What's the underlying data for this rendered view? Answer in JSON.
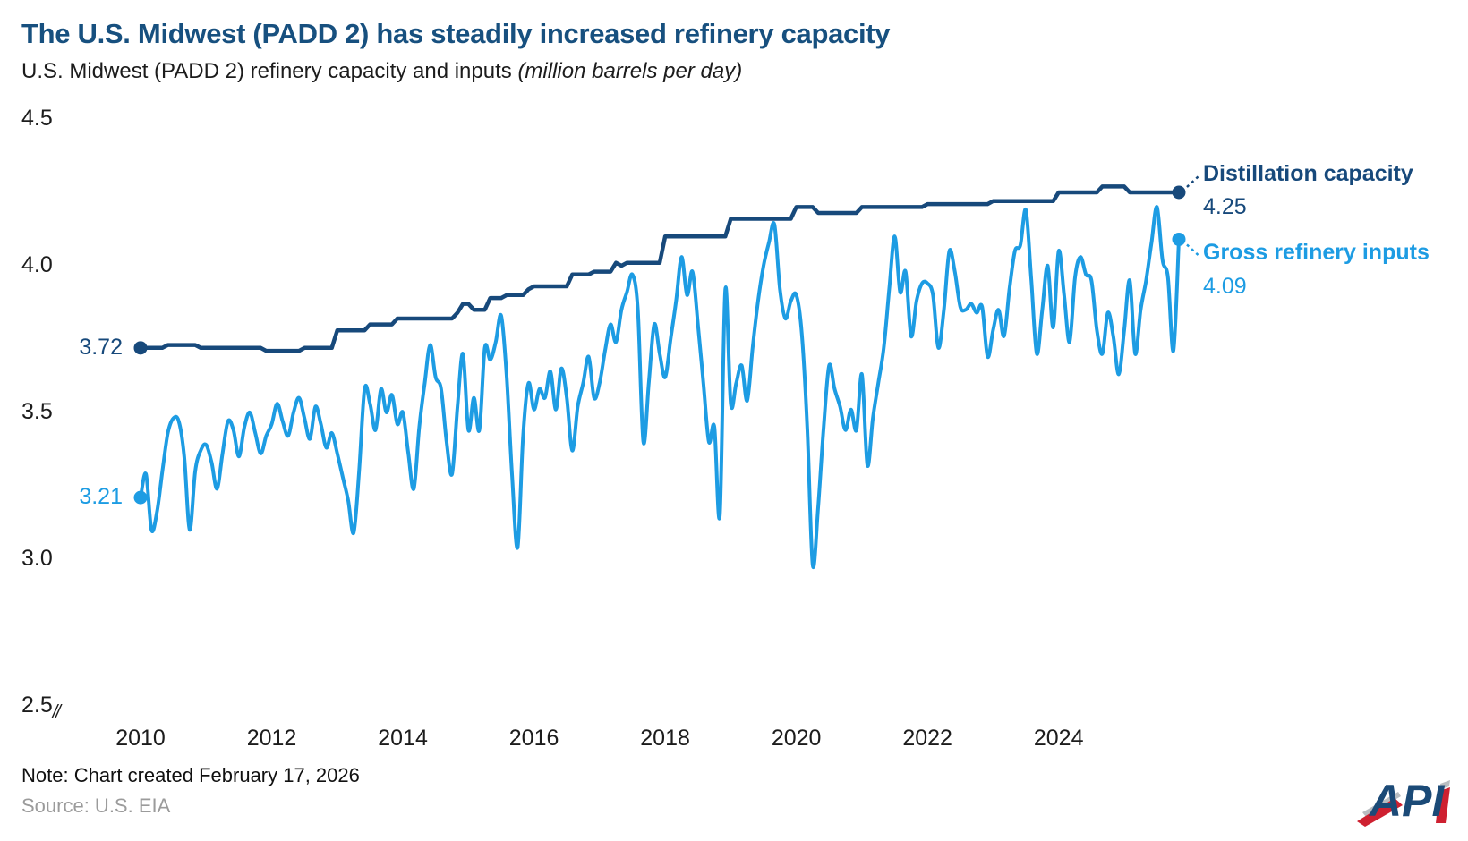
{
  "header": {
    "title": "The U.S. Midwest (PADD 2) has steadily increased refinery capacity",
    "subtitle": "U.S. Midwest (PADD 2) refinery capacity and inputs ",
    "subtitle_italic": "(million barrels per day)"
  },
  "footer": {
    "note": "Note: Chart created February 17, 2026",
    "source": "Source: U.S. EIA",
    "logo_text": "API"
  },
  "chart_data": {
    "type": "line",
    "title": "U.S. Midwest (PADD 2) refinery capacity and inputs",
    "units": "million barrels per day",
    "frequency": "monthly",
    "x_start": "2010-01",
    "x_end": "2025-11",
    "ylim": [
      2.5,
      4.5
    ],
    "grid": false,
    "axis_break_symbol": "//",
    "y_axis": {
      "ticks": [
        {
          "label": "4.5",
          "value": 4.5,
          "break": false
        },
        {
          "label": "4.0",
          "value": 4.0,
          "break": false
        },
        {
          "label": "3.5",
          "value": 3.5,
          "break": false
        },
        {
          "label": "3.0",
          "value": 3.0,
          "break": false
        },
        {
          "label": "2.5",
          "value": 2.5,
          "break": true
        }
      ]
    },
    "x_axis": {
      "ticks": [
        {
          "label": "2010",
          "year": 2010
        },
        {
          "label": "2012",
          "year": 2012
        },
        {
          "label": "2014",
          "year": 2014
        },
        {
          "label": "2016",
          "year": 2016
        },
        {
          "label": "2018",
          "year": 2018
        },
        {
          "label": "2020",
          "year": 2020
        },
        {
          "label": "2022",
          "year": 2022
        },
        {
          "label": "2024",
          "year": 2024
        }
      ]
    },
    "series": [
      {
        "name": "Distillation capacity",
        "color": "#17497b",
        "first_label": "3.72",
        "last_label": "4.25",
        "smooth": false,
        "values": [
          3.72,
          3.72,
          3.72,
          3.72,
          3.72,
          3.73,
          3.73,
          3.73,
          3.73,
          3.73,
          3.73,
          3.72,
          3.72,
          3.72,
          3.72,
          3.72,
          3.72,
          3.72,
          3.72,
          3.72,
          3.72,
          3.72,
          3.72,
          3.71,
          3.71,
          3.71,
          3.71,
          3.71,
          3.71,
          3.71,
          3.72,
          3.72,
          3.72,
          3.72,
          3.72,
          3.72,
          3.78,
          3.78,
          3.78,
          3.78,
          3.78,
          3.78,
          3.8,
          3.8,
          3.8,
          3.8,
          3.8,
          3.82,
          3.82,
          3.82,
          3.82,
          3.82,
          3.82,
          3.82,
          3.82,
          3.82,
          3.82,
          3.82,
          3.84,
          3.87,
          3.87,
          3.85,
          3.85,
          3.85,
          3.89,
          3.89,
          3.89,
          3.9,
          3.9,
          3.9,
          3.9,
          3.92,
          3.93,
          3.93,
          3.93,
          3.93,
          3.93,
          3.93,
          3.93,
          3.97,
          3.97,
          3.97,
          3.97,
          3.98,
          3.98,
          3.98,
          3.98,
          4.01,
          4.0,
          4.01,
          4.01,
          4.01,
          4.01,
          4.01,
          4.01,
          4.01,
          4.1,
          4.1,
          4.1,
          4.1,
          4.1,
          4.1,
          4.1,
          4.1,
          4.1,
          4.1,
          4.1,
          4.1,
          4.16,
          4.16,
          4.16,
          4.16,
          4.16,
          4.16,
          4.16,
          4.16,
          4.16,
          4.16,
          4.16,
          4.16,
          4.2,
          4.2,
          4.2,
          4.2,
          4.18,
          4.18,
          4.18,
          4.18,
          4.18,
          4.18,
          4.18,
          4.18,
          4.2,
          4.2,
          4.2,
          4.2,
          4.2,
          4.2,
          4.2,
          4.2,
          4.2,
          4.2,
          4.2,
          4.2,
          4.21,
          4.21,
          4.21,
          4.21,
          4.21,
          4.21,
          4.21,
          4.21,
          4.21,
          4.21,
          4.21,
          4.21,
          4.22,
          4.22,
          4.22,
          4.22,
          4.22,
          4.22,
          4.22,
          4.22,
          4.22,
          4.22,
          4.22,
          4.22,
          4.25,
          4.25,
          4.25,
          4.25,
          4.25,
          4.25,
          4.25,
          4.25,
          4.27,
          4.27,
          4.27,
          4.27,
          4.27,
          4.25,
          4.25,
          4.25,
          4.25,
          4.25,
          4.25,
          4.25,
          4.25,
          4.25,
          4.25
        ]
      },
      {
        "name": "Gross refinery inputs",
        "color": "#1d9ce3",
        "first_label": "3.21",
        "last_label": "4.09",
        "smooth": true,
        "values": [
          3.21,
          3.29,
          3.1,
          3.16,
          3.3,
          3.43,
          3.48,
          3.47,
          3.35,
          3.1,
          3.3,
          3.37,
          3.39,
          3.33,
          3.24,
          3.36,
          3.47,
          3.44,
          3.35,
          3.45,
          3.5,
          3.43,
          3.36,
          3.42,
          3.46,
          3.53,
          3.47,
          3.42,
          3.5,
          3.55,
          3.48,
          3.41,
          3.52,
          3.46,
          3.38,
          3.43,
          3.36,
          3.28,
          3.2,
          3.09,
          3.3,
          3.58,
          3.53,
          3.44,
          3.58,
          3.5,
          3.56,
          3.46,
          3.5,
          3.36,
          3.24,
          3.45,
          3.6,
          3.73,
          3.62,
          3.58,
          3.4,
          3.29,
          3.52,
          3.7,
          3.44,
          3.55,
          3.44,
          3.72,
          3.68,
          3.74,
          3.83,
          3.62,
          3.28,
          3.04,
          3.42,
          3.6,
          3.51,
          3.58,
          3.55,
          3.64,
          3.51,
          3.65,
          3.55,
          3.37,
          3.52,
          3.6,
          3.69,
          3.55,
          3.6,
          3.71,
          3.8,
          3.74,
          3.85,
          3.91,
          3.97,
          3.85,
          3.4,
          3.6,
          3.8,
          3.7,
          3.62,
          3.75,
          3.88,
          4.03,
          3.9,
          3.98,
          3.8,
          3.6,
          3.4,
          3.45,
          3.15,
          3.92,
          3.53,
          3.6,
          3.66,
          3.54,
          3.72,
          3.88,
          4.0,
          4.08,
          4.14,
          3.92,
          3.82,
          3.88,
          3.9,
          3.77,
          3.45,
          2.98,
          3.18,
          3.45,
          3.66,
          3.58,
          3.52,
          3.44,
          3.51,
          3.44,
          3.63,
          3.32,
          3.48,
          3.6,
          3.72,
          3.92,
          4.1,
          3.91,
          3.98,
          3.76,
          3.88,
          3.94,
          3.94,
          3.9,
          3.72,
          3.85,
          4.05,
          3.98,
          3.86,
          3.85,
          3.87,
          3.84,
          3.86,
          3.69,
          3.78,
          3.85,
          3.76,
          3.92,
          4.05,
          4.07,
          4.19,
          3.95,
          3.7,
          3.85,
          4.0,
          3.79,
          4.05,
          3.9,
          3.74,
          3.96,
          4.03,
          3.97,
          3.95,
          3.78,
          3.7,
          3.84,
          3.76,
          3.63,
          3.78,
          3.95,
          3.7,
          3.85,
          3.95,
          4.08,
          4.2,
          4.02,
          3.96,
          3.71,
          4.09
        ]
      }
    ]
  }
}
